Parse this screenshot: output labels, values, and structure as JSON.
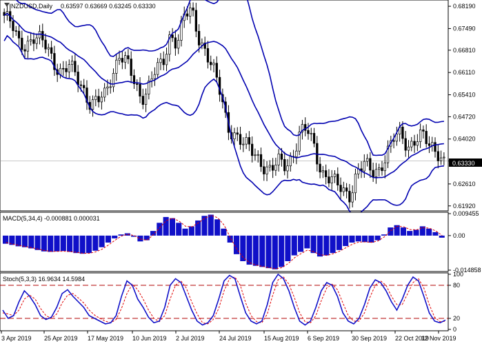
{
  "colors": {
    "background": "#ffffff",
    "frame": "#000000",
    "bollinger": "#0000b0",
    "candle": "#000000",
    "current_price_line": "#909090",
    "macd_histogram": "#1010c8",
    "macd_signal": "#e00000",
    "stoch_main": "#1010c8",
    "stoch_signal": "#e00000",
    "stoch_levels": "#b00000"
  },
  "main": {
    "symbol_timeframe": "NZDUSD,Daily",
    "ohlc": "0.63597 0.63669 0.63245 0.63330",
    "current_price": "0.63330",
    "ticks": [
      "0.68190",
      "0.67490",
      "0.66810",
      "0.66110",
      "0.65410",
      "0.64720",
      "0.64020",
      "0.63330",
      "0.62610",
      "0.61920"
    ],
    "indicator_icon": "down-arrow-icon"
  },
  "macd": {
    "label": "MACD(5,34,4) -0.000881 0.000031",
    "ticks": [
      "0.009455",
      "0.00",
      "-0.014858"
    ]
  },
  "stoch": {
    "label": "Stoch(5,3,3) 16.9634 14.5984",
    "ticks": [
      "100",
      "80",
      "20",
      "0"
    ],
    "levels": [
      80,
      20
    ]
  },
  "x_axis": {
    "dates": [
      "3 Apr 2019",
      "25 Apr 2019",
      "17 May 2019",
      "10 Jun 2019",
      "2 Jul 2019",
      "24 Jul 2019",
      "15 Aug 2019",
      "6 Sep 2019",
      "30 Sep 2019",
      "22 Oct 2019",
      "12 Nov 2019"
    ]
  },
  "chart_data": [
    {
      "type": "candlestick",
      "title": "NZDUSD,Daily",
      "ylim": [
        0.6185,
        0.683
      ],
      "indicators": [
        "Bollinger Bands"
      ],
      "close_path": [
        0.679,
        0.676,
        0.6705,
        0.67,
        0.672,
        0.671,
        0.669,
        0.664,
        0.661,
        0.663,
        0.66,
        0.656,
        0.651,
        0.652,
        0.654,
        0.661,
        0.667,
        0.664,
        0.658,
        0.653,
        0.657,
        0.662,
        0.663,
        0.673,
        0.671,
        0.679,
        0.68,
        0.672,
        0.668,
        0.662,
        0.654,
        0.644,
        0.642,
        0.639,
        0.637,
        0.635,
        0.632,
        0.63,
        0.633,
        0.632,
        0.635,
        0.642,
        0.643,
        0.638,
        0.63,
        0.628,
        0.626,
        0.624,
        0.623,
        0.63,
        0.632,
        0.63,
        0.631,
        0.635,
        0.64,
        0.642,
        0.638,
        0.64,
        0.641,
        0.638,
        0.637,
        0.6333
      ]
    },
    {
      "type": "bar",
      "title": "MACD(5,34,4)",
      "ylim": [
        -0.014858,
        0.009455
      ],
      "series": [
        {
          "name": "MACD",
          "values": [
            -0.0035,
            -0.004,
            -0.0046,
            -0.005,
            -0.0055,
            -0.0062,
            -0.0068,
            -0.007,
            -0.0068,
            -0.0066,
            -0.007,
            -0.0075,
            -0.0078,
            -0.0075,
            -0.0065,
            -0.005,
            -0.003,
            -0.0012,
            0.0005,
            0.001,
            -0.0005,
            -0.0025,
            -0.002,
            0.002,
            0.0055,
            0.008,
            0.0075,
            0.0055,
            0.003,
            0.004,
            0.0065,
            0.0085,
            0.009,
            0.007,
            0.003,
            -0.003,
            -0.008,
            -0.011,
            -0.0125,
            -0.013,
            -0.0135,
            -0.014,
            -0.0145,
            -0.0135,
            -0.011,
            -0.0085,
            -0.007,
            -0.0055,
            -0.0075,
            -0.009,
            -0.0085,
            -0.0075,
            -0.0062,
            -0.0045,
            -0.003,
            -0.0025,
            -0.0028,
            -0.003,
            -0.002,
            0.0005,
            0.0035,
            0.0045,
            0.0035,
            0.002,
            0.0025,
            0.004,
            0.003,
            0.0015,
            -0.0009
          ]
        },
        {
          "name": "Signal",
          "values": [
            -0.003,
            -0.0036,
            -0.0042,
            -0.0047,
            -0.0052,
            -0.0058,
            -0.0064,
            -0.0068,
            -0.0068,
            -0.0067,
            -0.0069,
            -0.0072,
            -0.0076,
            -0.0076,
            -0.007,
            -0.0058,
            -0.004,
            -0.002,
            -0.0002,
            0.0006,
            0.0,
            -0.0015,
            -0.002,
            0.0005,
            0.0035,
            0.0065,
            0.0075,
            0.0062,
            0.004,
            0.0038,
            0.0055,
            0.0075,
            0.0087,
            0.0077,
            0.0045,
            -0.001,
            -0.006,
            -0.0095,
            -0.0117,
            -0.0127,
            -0.0133,
            -0.0138,
            -0.0143,
            -0.0138,
            -0.012,
            -0.0095,
            -0.0077,
            -0.0062,
            -0.007,
            -0.0083,
            -0.0085,
            -0.0078,
            -0.0067,
            -0.0052,
            -0.0037,
            -0.0028,
            -0.0027,
            -0.0029,
            -0.0023,
            -0.0005,
            0.0022,
            0.004,
            0.0038,
            0.0026,
            0.0025,
            0.0035,
            0.0032,
            0.002,
            3e-05
          ]
        }
      ]
    },
    {
      "type": "line",
      "title": "Stoch(5,3,3)",
      "ylim": [
        0,
        100
      ],
      "series": [
        {
          "name": "%K",
          "values": [
            35,
            20,
            25,
            50,
            70,
            60,
            45,
            25,
            18,
            22,
            40,
            65,
            72,
            60,
            50,
            40,
            25,
            20,
            15,
            10,
            12,
            25,
            60,
            88,
            80,
            55,
            40,
            22,
            12,
            15,
            40,
            80,
            92,
            85,
            60,
            35,
            15,
            8,
            12,
            25,
            55,
            88,
            98,
            92,
            60,
            30,
            15,
            10,
            15,
            45,
            85,
            100,
            92,
            70,
            40,
            15,
            8,
            15,
            40,
            70,
            85,
            80,
            60,
            30,
            15,
            10,
            20,
            45,
            75,
            90,
            85,
            70,
            50,
            35,
            55,
            80,
            95,
            88,
            60,
            30,
            15,
            12,
            17
          ]
        },
        {
          "name": "%D",
          "values": [
            30,
            28,
            25,
            35,
            55,
            62,
            55,
            38,
            25,
            20,
            28,
            48,
            62,
            65,
            57,
            48,
            35,
            26,
            20,
            15,
            12,
            18,
            38,
            65,
            82,
            72,
            55,
            35,
            20,
            14,
            25,
            55,
            80,
            88,
            75,
            50,
            28,
            12,
            10,
            18,
            38,
            70,
            92,
            95,
            80,
            48,
            25,
            14,
            12,
            28,
            62,
            90,
            95,
            82,
            58,
            30,
            14,
            12,
            25,
            52,
            75,
            82,
            72,
            48,
            25,
            15,
            15,
            30,
            58,
            80,
            88,
            80,
            60,
            45,
            45,
            65,
            85,
            92,
            75,
            45,
            22,
            14,
            14.6
          ]
        }
      ],
      "levels": [
        80,
        20
      ]
    }
  ]
}
